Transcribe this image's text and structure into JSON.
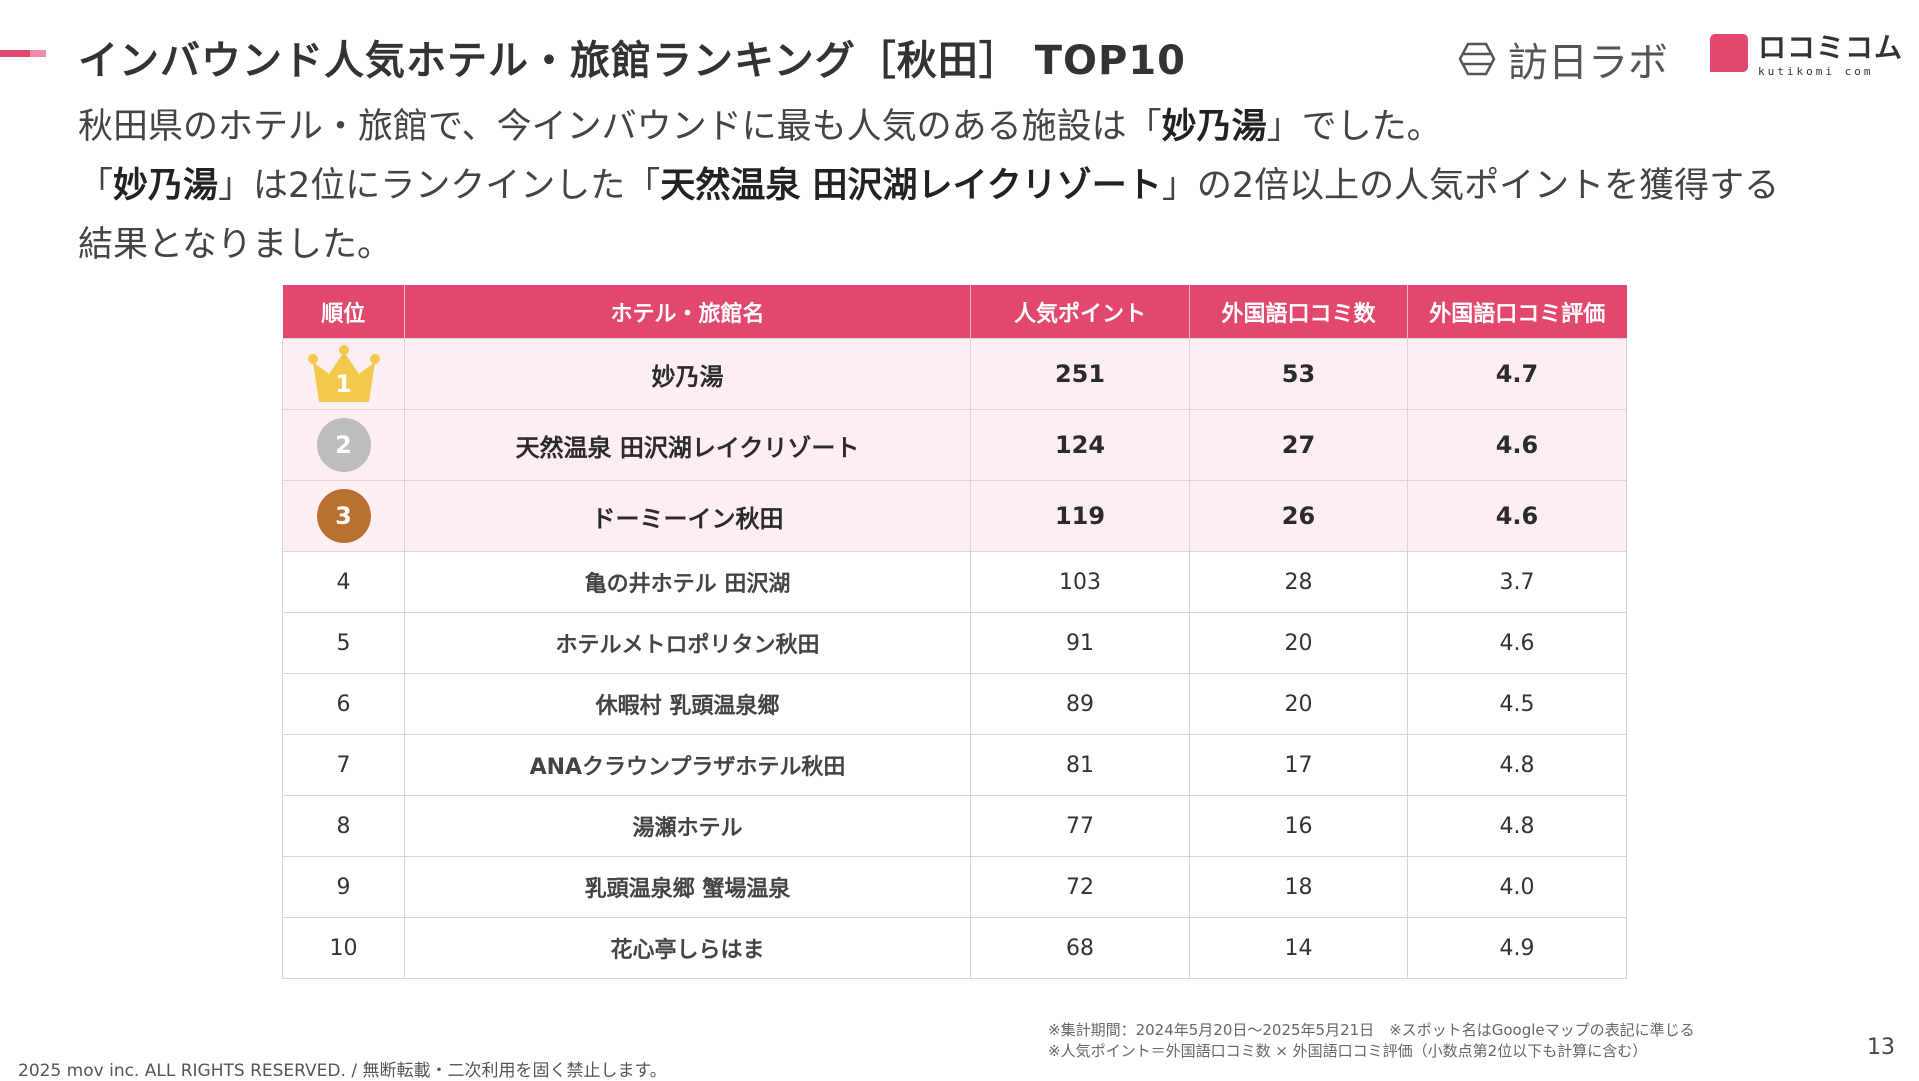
{
  "colors": {
    "accent": "#e2486e",
    "accent_light": "#f08ca6",
    "row_highlight": "#fdeef2",
    "gold": "#f2c94c",
    "silver": "#bdbdbd",
    "bronze": "#b8712f"
  },
  "header": {
    "title": "インバウンド人気ホテル・旅館ランキング［秋田］ TOP10",
    "logo_primary": "訪日ラボ",
    "logo_primary_icon": "lantern-icon",
    "logo_secondary": "ロコミコム",
    "logo_secondary_sub": "kutikomi com"
  },
  "lead": {
    "line1": [
      {
        "text": "秋田県のホテル・旅館で、今インバウンドに最も人気のある施設は「",
        "bold": false
      },
      {
        "text": "妙乃湯",
        "bold": true
      },
      {
        "text": "」でした。",
        "bold": false
      }
    ],
    "line2": [
      {
        "text": "「",
        "bold": false
      },
      {
        "text": "妙乃湯",
        "bold": true
      },
      {
        "text": "」は2位にランクインした「",
        "bold": false
      },
      {
        "text": "天然温泉 田沢湖レイクリゾート",
        "bold": true
      },
      {
        "text": "」の2倍以上の人気ポイントを獲得する",
        "bold": false
      }
    ],
    "line3": [
      {
        "text": "結果となりました。",
        "bold": false
      }
    ]
  },
  "table": {
    "columns": [
      "順位",
      "ホテル・旅館名",
      "人気ポイント",
      "外国語口コミ数",
      "外国語口コミ評価"
    ],
    "rows": [
      {
        "rank": "1",
        "name": "妙乃湯",
        "points": "251",
        "reviews": "53",
        "rating": "4.7"
      },
      {
        "rank": "2",
        "name": "天然温泉 田沢湖レイクリゾート",
        "points": "124",
        "reviews": "27",
        "rating": "4.6"
      },
      {
        "rank": "3",
        "name": "ドーミーイン秋田",
        "points": "119",
        "reviews": "26",
        "rating": "4.6"
      },
      {
        "rank": "4",
        "name": "亀の井ホテル 田沢湖",
        "points": "103",
        "reviews": "28",
        "rating": "3.7"
      },
      {
        "rank": "5",
        "name": "ホテルメトロポリタン秋田",
        "points": "91",
        "reviews": "20",
        "rating": "4.6"
      },
      {
        "rank": "6",
        "name": "休暇村 乳頭温泉郷",
        "points": "89",
        "reviews": "20",
        "rating": "4.5"
      },
      {
        "rank": "7",
        "name": "ANAクラウンプラザホテル秋田",
        "points": "81",
        "reviews": "17",
        "rating": "4.8"
      },
      {
        "rank": "8",
        "name": "湯瀬ホテル",
        "points": "77",
        "reviews": "16",
        "rating": "4.8"
      },
      {
        "rank": "9",
        "name": "乳頭温泉郷 蟹場温泉",
        "points": "72",
        "reviews": "18",
        "rating": "4.0"
      },
      {
        "rank": "10",
        "name": "花心亭しらはま",
        "points": "68",
        "reviews": "14",
        "rating": "4.9"
      }
    ]
  },
  "footer": {
    "note1": "※集計期間：2024年5月20日〜2025年5月21日　※スポット名はGoogleマップの表記に準じる",
    "note2": "※人気ポイント＝外国語口コミ数 × 外国語口コミ評価（小数点第2位以下も計算に含む）",
    "copyright": "2025 mov inc. ALL RIGHTS RESERVED. / 無断転載・二次利用を固く禁止します。",
    "page_number": "13"
  }
}
